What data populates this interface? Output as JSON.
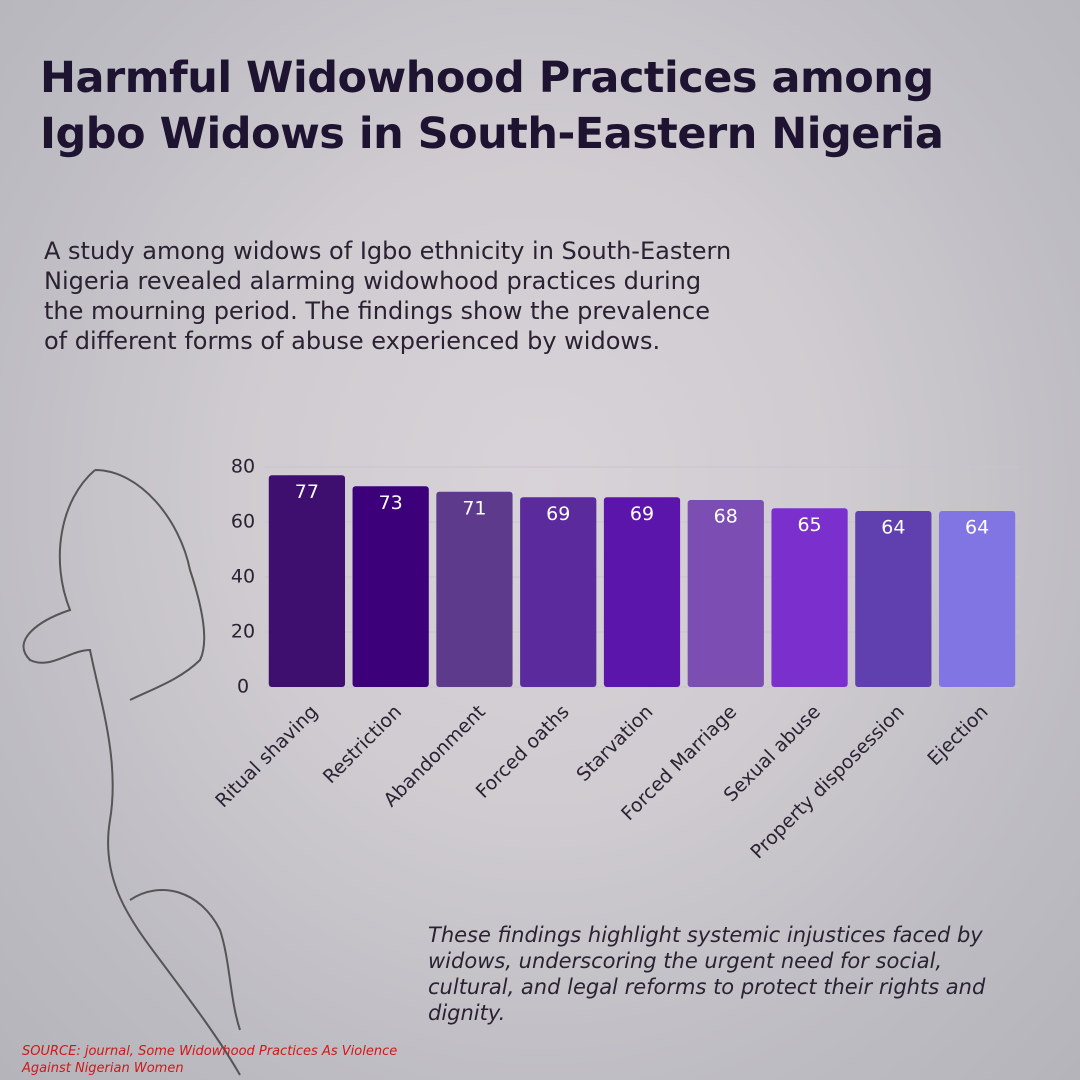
{
  "chart_data": {
    "type": "bar",
    "title": "Harmful Widowhood Practices among Igbo Widows in South-Eastern Nigeria",
    "categories": [
      "Ritual shaving",
      "Restriction",
      "Abandonment",
      "Forced oaths",
      "Starvation",
      "Forced Marriage",
      "Sexual abuse",
      "Property disposession",
      "Ejection"
    ],
    "values": [
      77,
      73,
      71,
      69,
      69,
      68,
      65,
      64,
      64
    ],
    "colors": [
      "#3e0f6e",
      "#3d007b",
      "#5e3a8c",
      "#5b2a9c",
      "#5c15aa",
      "#7c4db3",
      "#7b30cd",
      "#5f40ae",
      "#8075e2"
    ],
    "ylim": [
      0,
      80
    ],
    "yticks": [
      0,
      20,
      40,
      60,
      80
    ],
    "grid": true
  },
  "description": "A study among widows of Igbo ethnicity in South-Eastern Nigeria revealed alarming widowhood practices during the mourning period. The findings show the prevalence of different forms of abuse experienced by widows.",
  "note": "These findings highlight systemic injustices faced by widows, underscoring the urgent need for social, cultural, and legal reforms to protect their rights and dignity.",
  "source": "SOURCE:  journal, Some Widowhood Practices As Violence Against Nigerian Women"
}
